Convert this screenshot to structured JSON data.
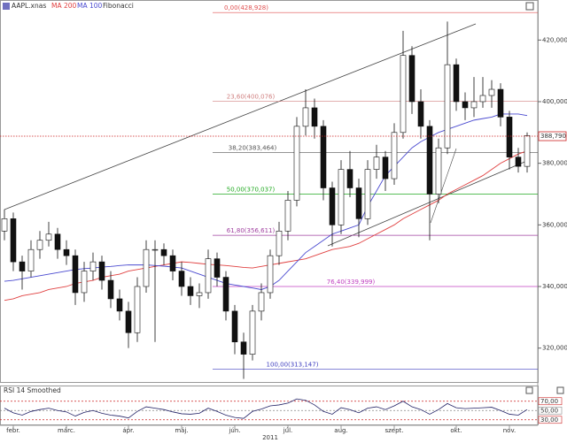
{
  "chart_data": [
    {
      "type": "candlestick",
      "title": "AAPL.xnas",
      "indicator": "Fibonacci",
      "year": "2011",
      "categories": [
        null,
        "febr.",
        null,
        null,
        null,
        null,
        null,
        "márc.",
        null,
        null,
        null,
        null,
        null,
        null,
        "ápr.",
        null,
        null,
        null,
        null,
        null,
        "máj.",
        null,
        null,
        null,
        null,
        null,
        "jún.",
        null,
        null,
        null,
        null,
        null,
        "júl.",
        null,
        null,
        null,
        null,
        null,
        "aug.",
        null,
        null,
        null,
        null,
        null,
        "szept.",
        null,
        null,
        null,
        null,
        null,
        null,
        "okt.",
        null,
        null,
        null,
        null,
        null,
        "nov.",
        null,
        null
      ],
      "open": [
        358,
        362,
        348,
        345,
        352,
        355,
        357,
        352,
        350,
        338,
        345,
        348,
        342,
        336,
        332,
        325,
        340,
        352,
        352,
        350,
        345,
        340,
        337,
        338,
        349,
        343,
        332,
        322,
        318,
        332,
        338,
        350,
        358,
        368,
        392,
        398,
        392,
        372,
        360,
        378,
        372,
        362,
        378,
        382,
        375,
        390,
        415,
        400,
        392,
        370,
        385,
        412,
        400,
        398,
        400,
        402,
        404,
        395,
        382,
        379
      ],
      "high": [
        365,
        364,
        350,
        355,
        358,
        361,
        359,
        355,
        352,
        348,
        351,
        350,
        345,
        339,
        335,
        343,
        355,
        355,
        354,
        352,
        348,
        343,
        341,
        352,
        351,
        345,
        334,
        325,
        334,
        341,
        352,
        361,
        371,
        395,
        404,
        401,
        394,
        374,
        381,
        384,
        375,
        381,
        386,
        384,
        393,
        423,
        418,
        404,
        394,
        388,
        426,
        414,
        403,
        408,
        408,
        407,
        406,
        397,
        385,
        390
      ],
      "low": [
        355,
        345,
        339,
        343,
        349,
        353,
        349,
        347,
        334,
        335,
        342,
        339,
        333,
        329,
        320,
        322,
        338,
        322,
        347,
        342,
        337,
        334,
        333,
        336,
        340,
        329,
        318,
        310,
        316,
        329,
        336,
        347,
        355,
        366,
        389,
        388,
        368,
        353,
        357,
        369,
        356,
        360,
        375,
        371,
        373,
        388,
        396,
        388,
        355,
        367,
        383,
        397,
        394,
        395,
        398,
        398,
        392,
        378,
        377,
        377
      ],
      "close": [
        362,
        348,
        345,
        352,
        355,
        357,
        352,
        350,
        338,
        345,
        348,
        342,
        336,
        332,
        325,
        340,
        352,
        352,
        350,
        345,
        340,
        337,
        338,
        349,
        343,
        332,
        322,
        318,
        332,
        338,
        350,
        358,
        368,
        392,
        398,
        392,
        372,
        360,
        378,
        372,
        362,
        378,
        382,
        375,
        390,
        415,
        400,
        392,
        370,
        385,
        412,
        400,
        398,
        400,
        402,
        404,
        395,
        382,
        379,
        389
      ],
      "up_color": "#ffffff",
      "down_color": "#111111",
      "series": [
        {
          "name": "MA 200",
          "color": "#e04040",
          "values": [
            335.5,
            336,
            337,
            337.5,
            338,
            339,
            339.5,
            340,
            341,
            341.5,
            342,
            343,
            343.5,
            344,
            345,
            345.5,
            346,
            346.5,
            347,
            347.5,
            348,
            347.8,
            347.5,
            347.2,
            347,
            346.8,
            346.5,
            346.2,
            346,
            346.5,
            347,
            347.5,
            348,
            348.5,
            349,
            350,
            351,
            352,
            352.5,
            353,
            354,
            355.5,
            357,
            358.5,
            360,
            362,
            363.5,
            365,
            366.5,
            368,
            370,
            371.5,
            373,
            374.5,
            376,
            378,
            380,
            381.5,
            383,
            384
          ]
        },
        {
          "name": "MA 100",
          "color": "#4a4ad0",
          "values": [
            341.7,
            342,
            342.5,
            343,
            343.5,
            344,
            344.5,
            345,
            345.5,
            345.8,
            346,
            346.3,
            346.5,
            346.8,
            347,
            347,
            347,
            346.8,
            346.6,
            346.3,
            346,
            345,
            344,
            343,
            342,
            341,
            340.5,
            340,
            339.5,
            339,
            340,
            342,
            345,
            348,
            351,
            353,
            355,
            357,
            358,
            359,
            360,
            366,
            371,
            376,
            379,
            382,
            385,
            387,
            388.5,
            390,
            391,
            392,
            393,
            394,
            394.5,
            395,
            396,
            396,
            396,
            395.5
          ]
        }
      ],
      "fib_levels": [
        {
          "value": 428.928,
          "label": "0,00(428,928)",
          "color": "#e05050"
        },
        {
          "value": 400.076,
          "label": "23,60(400,076)",
          "color": "#d08080"
        },
        {
          "value": 383.464,
          "label": "38,20(383,464)",
          "color": "#555555"
        },
        {
          "value": 370.037,
          "label": "50,00(370,037)",
          "color": "#22aa22"
        },
        {
          "value": 356.611,
          "label": "61,80(356,611)",
          "color": "#a040a0"
        },
        {
          "value": 339.999,
          "label": "76,40(339,999)",
          "color": "#c040c0"
        },
        {
          "value": 313.147,
          "label": "100,00(313,147)",
          "color": "#4040c0"
        }
      ],
      "last_price": {
        "value": 388.79,
        "label": "388,790",
        "color": "#cc2222"
      },
      "ylim": [
        309,
        433
      ],
      "yticks": [
        {
          "value": 320,
          "label": "320,000"
        },
        {
          "value": 340,
          "label": "340,000"
        },
        {
          "value": 360,
          "label": "360,000"
        },
        {
          "value": 380,
          "label": "380,000"
        },
        {
          "value": 400,
          "label": "400,000"
        },
        {
          "value": 420,
          "label": "420,000"
        }
      ]
    },
    {
      "type": "line",
      "title": "RSI 14 Smoothed",
      "color": "#222266",
      "values": [
        55,
        45,
        40,
        48,
        52,
        55,
        50,
        47,
        38,
        46,
        50,
        44,
        40,
        38,
        34,
        48,
        58,
        55,
        52,
        47,
        43,
        42,
        44,
        55,
        48,
        40,
        35,
        33,
        48,
        53,
        60,
        62,
        66,
        75,
        72,
        62,
        48,
        42,
        56,
        52,
        45,
        55,
        58,
        52,
        60,
        70,
        58,
        52,
        42,
        52,
        65,
        56,
        54,
        55,
        56,
        57,
        50,
        42,
        40,
        52
      ],
      "ylim": [
        20,
        100
      ],
      "yticks": [
        {
          "value": 30,
          "label": "30,00",
          "color": "#cc2222"
        },
        {
          "value": 50,
          "label": "50,00",
          "color": "#888888"
        },
        {
          "value": 70,
          "label": "70,00",
          "color": "#cc2222"
        }
      ]
    }
  ]
}
